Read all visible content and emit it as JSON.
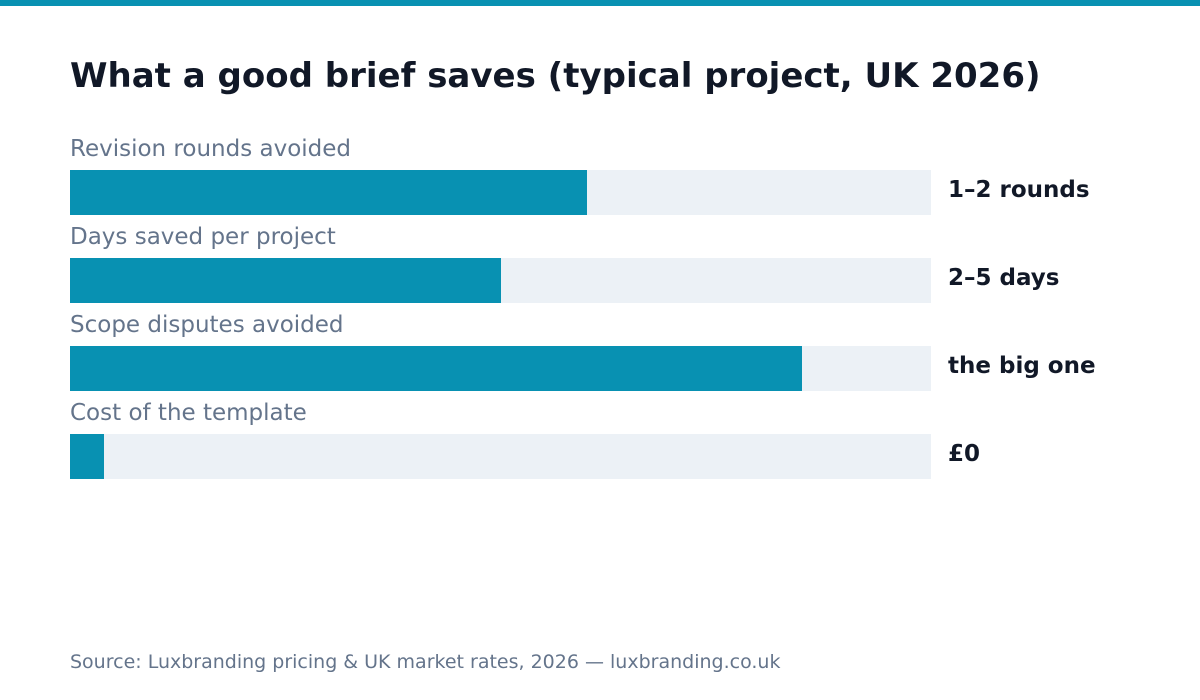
{
  "colors": {
    "accent": "#0891b2",
    "track": "#ecf1f6",
    "title": "#111827",
    "muted": "#64748b"
  },
  "chart_data": {
    "type": "bar",
    "orientation": "horizontal",
    "title": "What a good brief saves (typical project, UK 2026)",
    "categories": [
      "Revision rounds avoided",
      "Days saved per project",
      "Scope disputes avoided",
      "Cost of the template"
    ],
    "value_labels": [
      "1–2 rounds",
      "2–5 days",
      "the big one",
      "£0"
    ],
    "values": [
      0.6,
      0.5,
      0.85,
      0.04
    ],
    "value_scale": "fraction of full track",
    "xlim": [
      0,
      1
    ],
    "grid": false,
    "legend": "none"
  },
  "source": "Source: Luxbranding pricing & UK market rates, 2026 — luxbranding.co.uk"
}
